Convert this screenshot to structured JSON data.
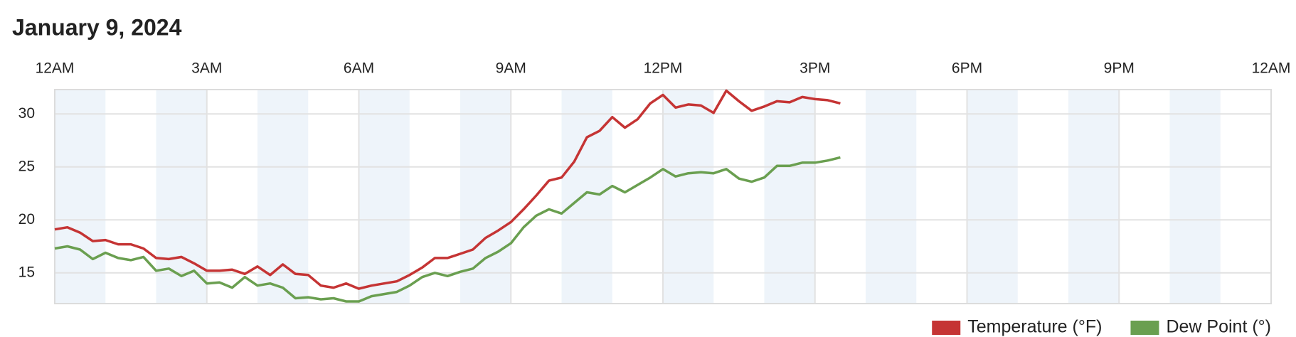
{
  "chart_data": {
    "type": "line",
    "title": "January 9, 2024",
    "x": [
      0,
      0.25,
      0.5,
      0.75,
      1,
      1.25,
      1.5,
      1.75,
      2,
      2.25,
      2.5,
      2.75,
      3,
      3.25,
      3.5,
      3.75,
      4,
      4.25,
      4.5,
      4.75,
      5,
      5.25,
      5.5,
      5.75,
      6,
      6.25,
      6.5,
      6.75,
      7,
      7.25,
      7.5,
      7.75,
      8,
      8.25,
      8.5,
      8.75,
      9,
      9.25,
      9.5,
      9.75,
      10,
      10.25,
      10.5,
      10.75,
      11,
      11.25,
      11.5,
      11.75,
      12,
      12.25,
      12.5,
      12.75,
      13,
      13.25,
      13.5,
      13.75,
      14,
      14.25,
      14.5,
      14.75,
      15,
      15.25,
      15.5
    ],
    "series": [
      {
        "name": "Temperature (°F)",
        "color": "#c53434",
        "values": [
          19.1,
          19.3,
          18.8,
          18.0,
          18.1,
          17.7,
          17.7,
          17.3,
          16.4,
          16.3,
          16.5,
          15.9,
          15.2,
          15.2,
          15.3,
          14.9,
          15.6,
          14.8,
          15.8,
          14.9,
          14.8,
          13.8,
          13.6,
          14.0,
          13.5,
          13.8,
          14.0,
          14.2,
          14.8,
          15.5,
          16.4,
          16.4,
          16.8,
          17.2,
          18.3,
          19.0,
          19.8,
          21.0,
          22.3,
          23.7,
          24.0,
          25.5,
          27.8,
          28.4,
          29.7,
          28.7,
          29.5,
          31.0,
          31.8,
          30.6,
          30.9,
          30.8,
          30.1,
          32.2,
          31.2,
          30.3,
          30.7,
          31.2,
          31.1,
          31.6,
          31.4,
          31.3,
          31.0
        ]
      },
      {
        "name": "Dew Point (°)",
        "color": "#6a9f50",
        "values": [
          17.3,
          17.5,
          17.2,
          16.3,
          16.9,
          16.4,
          16.2,
          16.5,
          15.2,
          15.4,
          14.7,
          15.2,
          14.0,
          14.1,
          13.6,
          14.6,
          13.8,
          14.0,
          13.6,
          12.6,
          12.7,
          12.5,
          12.6,
          12.3,
          12.3,
          12.8,
          13.0,
          13.2,
          13.8,
          14.6,
          15.0,
          14.7,
          15.1,
          15.4,
          16.4,
          17.0,
          17.8,
          19.3,
          20.4,
          21.0,
          20.6,
          21.6,
          22.6,
          22.4,
          23.2,
          22.6,
          23.3,
          24.0,
          24.8,
          24.1,
          24.4,
          24.5,
          24.4,
          24.8,
          23.9,
          23.6,
          24.0,
          25.1,
          25.1,
          25.4,
          25.4,
          25.6,
          25.9
        ]
      }
    ],
    "xlim": [
      0,
      24
    ],
    "xticks": [
      {
        "value": 0,
        "label": "12AM"
      },
      {
        "value": 3,
        "label": "3AM"
      },
      {
        "value": 6,
        "label": "6AM"
      },
      {
        "value": 9,
        "label": "9AM"
      },
      {
        "value": 12,
        "label": "12PM"
      },
      {
        "value": 15,
        "label": "3PM"
      },
      {
        "value": 18,
        "label": "6PM"
      },
      {
        "value": 21,
        "label": "9PM"
      },
      {
        "value": 24,
        "label": "12AM"
      }
    ],
    "ylim": [
      12.1,
      32.3
    ],
    "yticks": [
      15,
      20,
      25,
      30
    ],
    "grid": true,
    "legend": "bottom-right"
  }
}
